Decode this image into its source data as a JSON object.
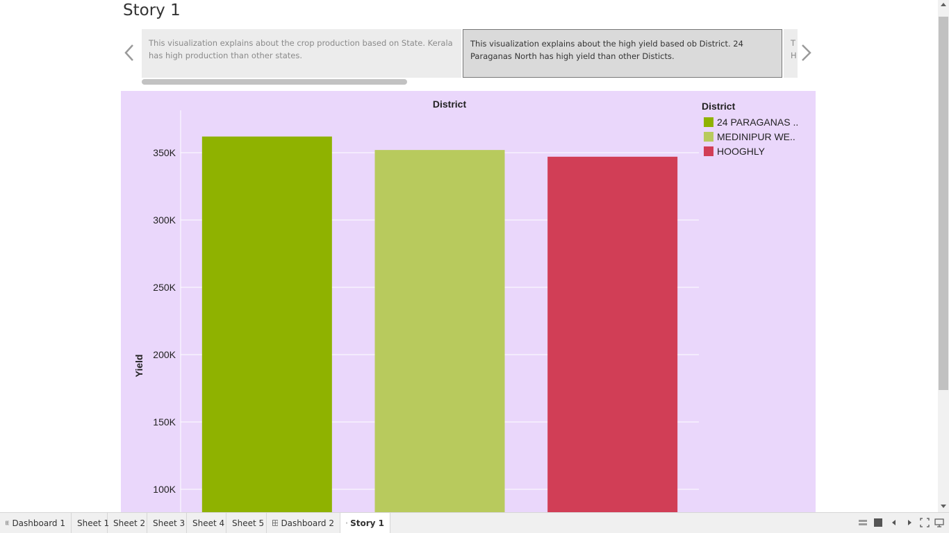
{
  "story": {
    "title": "Story 1",
    "points": [
      {
        "text": "This visualization explains about the crop production based on State. Kerala has high production than other states."
      },
      {
        "text": "This visualization explains about the high yield based ob District. 24 Paraganas North has high yield than other Disticts."
      },
      {
        "text": "T H"
      }
    ]
  },
  "legend": {
    "title": "District",
    "items": [
      {
        "label": "24 PARAGANAS ..",
        "color": "#8fb200"
      },
      {
        "label": "MEDINIPUR WE..",
        "color": "#b8ca5d"
      },
      {
        "label": "HOOGHLY",
        "color": "#d13e56"
      }
    ]
  },
  "chart_data": {
    "type": "bar",
    "title": "District",
    "xlabel": "",
    "ylabel": "Yield",
    "categories": [
      "24 PARAGANAS ..",
      "MEDINIPUR WE..",
      "HOOGHLY"
    ],
    "values": [
      362000,
      352000,
      347000
    ],
    "colors": [
      "#8fb200",
      "#b8ca5d",
      "#d13e56"
    ],
    "yticks": [
      100000,
      150000,
      200000,
      250000,
      300000,
      350000
    ],
    "yticklabels": [
      "100K",
      "150K",
      "200K",
      "250K",
      "300K",
      "350K"
    ],
    "ylim": [
      93000,
      381000
    ],
    "grid": true,
    "legend_position": "top-right"
  },
  "tabs": [
    {
      "label": "Dashboard 1",
      "icon": "dashboard-icon"
    },
    {
      "label": "Sheet 1",
      "icon": ""
    },
    {
      "label": "Sheet 2",
      "icon": ""
    },
    {
      "label": "Sheet 3",
      "icon": ""
    },
    {
      "label": "Sheet 4",
      "icon": ""
    },
    {
      "label": "Sheet 5",
      "icon": ""
    },
    {
      "label": "Dashboard 2",
      "icon": "dashboard-icon"
    },
    {
      "label": "Story 1",
      "icon": "story-icon",
      "active": true
    }
  ],
  "colors": {
    "viz_background": "#ead7fb",
    "gridline": "#ffffff"
  }
}
